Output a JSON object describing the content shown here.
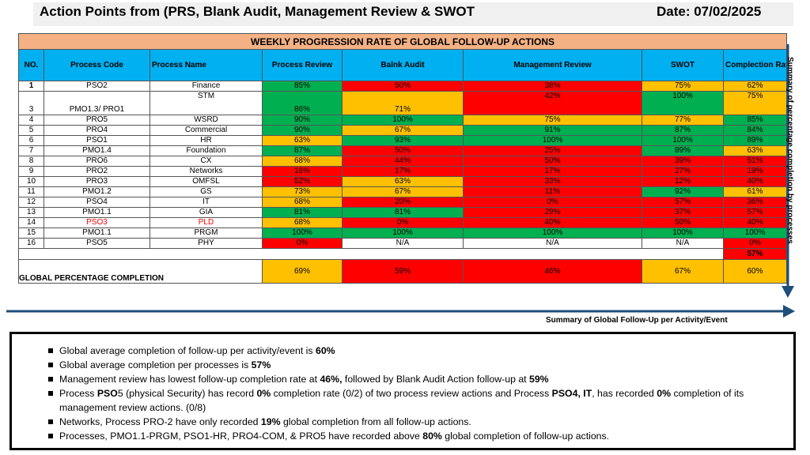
{
  "header": {
    "title": "Action Points  from (PRS, Blank Audit, Management Review & SWOT",
    "date": "Date: 07/02/2025"
  },
  "table": {
    "title": "WEEKLY PROGRESSION RATE OF GLOBAL  FOLLOW-UP ACTIONS",
    "columns": {
      "no": "NO.",
      "code": "Process Code",
      "name": "Process Name",
      "process_review": "Process Review",
      "blank_audit": "Balnk Audit",
      "management_review": "Management Review",
      "swot": "SWOT",
      "completion_rate": "Complection Rate"
    },
    "rows": [
      {
        "no": "1",
        "code": "PSO2",
        "name": "Finance",
        "pr": "85%",
        "ba": "50%",
        "mr": "38%",
        "swot": "75%",
        "rate": "62%"
      },
      {
        "no": "3",
        "code": "PMO1.3/ PRO1",
        "name": "STM",
        "pr": "86%",
        "ba": "71%",
        "mr": "42%",
        "swot": "100%",
        "rate": "75%"
      },
      {
        "no": "4",
        "code": "PRO5",
        "name": "WSRD",
        "pr": "90%",
        "ba": "100%",
        "mr": "75%",
        "swot": "77%",
        "rate": "85%"
      },
      {
        "no": "5",
        "code": "PRO4",
        "name": "Commercial",
        "pr": "90%",
        "ba": "67%",
        "mr": "91%",
        "swot": "87%",
        "rate": "84%"
      },
      {
        "no": "6",
        "code": "PSO1",
        "name": "HR",
        "pr": "63%",
        "ba": "93%",
        "mr": "100%",
        "swot": "100%",
        "rate": "89%"
      },
      {
        "no": "7",
        "code": "PMO1.4",
        "name": "Foundation",
        "pr": "87%",
        "ba": "50%",
        "mr": "25%",
        "swot": "89%",
        "rate": "63%"
      },
      {
        "no": "8",
        "code": "PRO6",
        "name": "CX",
        "pr": "68%",
        "ba": "44%",
        "mr": "50%",
        "swot": "39%",
        "rate": "51%"
      },
      {
        "no": "9",
        "code": "PRO2",
        "name": "Networks",
        "pr": "16%",
        "ba": "17%",
        "mr": "17%",
        "swot": "27%",
        "rate": "19%"
      },
      {
        "no": "10",
        "code": "PRO3",
        "name": "OMFSL",
        "pr": "52%",
        "ba": "63%",
        "mr": "33%",
        "swot": "12%",
        "rate": "40%"
      },
      {
        "no": "11",
        "code": "PMO1.2",
        "name": "GS",
        "pr": "73%",
        "ba": "67%",
        "mr": "11%",
        "swot": "92%",
        "rate": "61%"
      },
      {
        "no": "12",
        "code": "PSO4",
        "name": "IT",
        "pr": "68%",
        "ba": "20%",
        "mr": "0%",
        "swot": "57%",
        "rate": "36%"
      },
      {
        "no": "13",
        "code": "PMO1.1",
        "name": "GIA",
        "pr": "81%",
        "ba": "81%",
        "mr": "29%",
        "swot": "37%",
        "rate": "57%"
      },
      {
        "no": "14",
        "code": "PSO3",
        "name": "PLD",
        "pr": "68%",
        "ba": "0%",
        "mr": "40%",
        "swot": "50%",
        "rate": "40%"
      },
      {
        "no": "15",
        "code": "PMO1.1",
        "name": "PRGM",
        "pr": "100%",
        "ba": "100%",
        "mr": "100%",
        "swot": "100%",
        "rate": "100%"
      },
      {
        "no": "16",
        "code": "PSO5",
        "name": "PHY",
        "pr": "0%",
        "ba": "N/A",
        "mr": "N/A",
        "swot": "N/A",
        "rate": "0%"
      }
    ],
    "processes_average": "57%",
    "global": {
      "label": "GLOBAL PERCENTAGE COMPLETION",
      "pr": "69%",
      "ba": "59%",
      "mr": "46%",
      "swot": "67%",
      "rate": "60%"
    }
  },
  "colors": {
    "green": "#00b050",
    "yellow": "#ffc000",
    "red": "#ff0000",
    "header_blue": "#00b0f0",
    "title_orange": "#f4b183",
    "arrow_blue": "#1f4e79"
  },
  "side_label": "Summary of percentage completion by processes",
  "bottom_label": "Summary of Global Follow-Up per Activity/Event",
  "summary": {
    "items": [
      {
        "a": "Global average completion of follow-up per activity/event is ",
        "b": "60%",
        "c": "",
        "d": "",
        "e": "",
        "f": "",
        "g": ""
      },
      {
        "a": "Global average completion per processes is ",
        "b": "57%",
        "c": "",
        "d": "",
        "e": "",
        "f": "",
        "g": ""
      },
      {
        "a": "Management review has lowest follow-up completion rate at ",
        "b": "46%,",
        "c": " followed by Blank Audit Action follow-up at ",
        "d": "59%",
        "e": "",
        "f": "",
        "g": ""
      },
      {
        "a": "Process ",
        "b": "PSO",
        "c": "5 (physical Security) has record ",
        "d": "0%",
        "e": " completion rate (0/2) of two process review actions and Process ",
        "f": "PSO4, IT",
        "g": ", has recorded ",
        "h": "0%",
        "i": " completion of its management review actions. (0/8)"
      },
      {
        "a": "Networks, Process PRO-2 have only recorded ",
        "b": "19%",
        "c": " global completion from all follow-up actions.",
        "d": "",
        "e": "",
        "f": "",
        "g": ""
      },
      {
        "a": "Processes, PMO1.1-PRGM, PSO1-HR, PRO4-COM, & PRO5 have recorded above ",
        "b": "80%",
        "c": " global completion of follow-up actions.",
        "d": "",
        "e": "",
        "f": "",
        "g": ""
      }
    ]
  }
}
